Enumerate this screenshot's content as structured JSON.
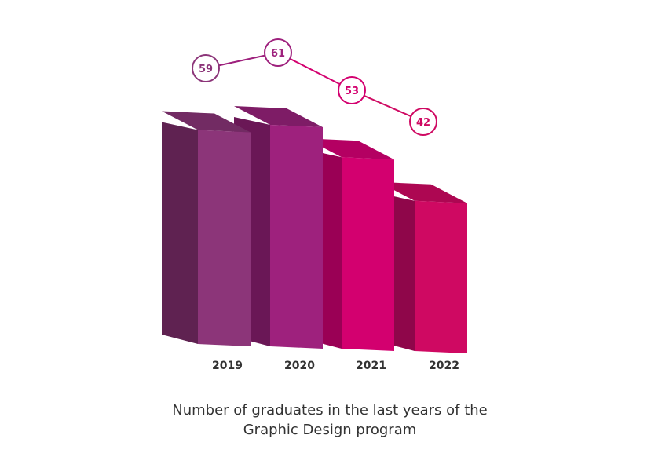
{
  "chart_data": {
    "type": "bar",
    "categories": [
      "2019",
      "2020",
      "2021",
      "2022"
    ],
    "values": [
      59,
      61,
      53,
      42
    ],
    "value_labels": [
      "59",
      "61",
      "53",
      "42"
    ],
    "title_lines": [
      "Number of graduates in the last years of the",
      "Graphic Design program"
    ],
    "xlabel": "",
    "ylabel": "",
    "grid": false,
    "legend": "none",
    "bar_style": "3d",
    "overlay_line": true,
    "colors": {
      "bars": [
        "#8c3579",
        "#9e217d",
        "#d3006f",
        "#cf0962"
      ],
      "bar_sides": [
        "#5f2251",
        "#6a1756",
        "#9a0055",
        "#8f064a"
      ],
      "bar_tops": [
        "#722b63",
        "#7e1c66",
        "#b40062",
        "#ad0752"
      ],
      "markers": [
        "#8c3579",
        "#9e217d",
        "#d3006f",
        "#cf0962"
      ]
    }
  }
}
